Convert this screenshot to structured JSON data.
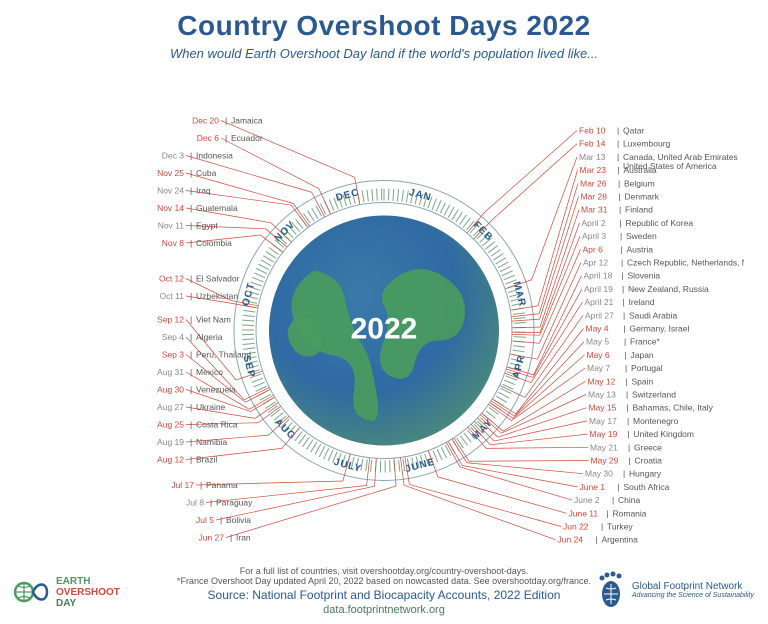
{
  "title": "Country Overshoot Days 2022",
  "subtitle": "When would Earth Overshoot Day land if the world's population lived like...",
  "year_label": "2022",
  "months": [
    "JAN",
    "FEB",
    "MAR",
    "APR",
    "MAY",
    "JUNE",
    "JULY",
    "AUG",
    "SEP",
    "OCT",
    "NOV",
    "DEC"
  ],
  "globe": {
    "ocean_colors": [
      "#2f6aa3",
      "#3a7aa8",
      "#4a8a7a"
    ],
    "land_color": "#4a9b5e",
    "radius": 115,
    "ring_outer": 150,
    "ring_inner": 128,
    "ring_stroke": "#8aa6b8",
    "tick_color": "#7aa68a",
    "month_label_radius": 140
  },
  "colors": {
    "title": "#2a5a8f",
    "date_highlight": "#d14a3b",
    "date_dim": "#888888",
    "leader": "#d14a3b",
    "country": "#555555"
  },
  "callouts_right": [
    {
      "date": "Feb 10",
      "country": "Qatar",
      "day": 41,
      "hl": true
    },
    {
      "date": "Feb 14",
      "country": "Luxembourg",
      "day": 45,
      "hl": true
    },
    {
      "date": "Mar 13",
      "country": "Canada, United Arab Emirates\nUnited States of America",
      "day": 72,
      "hl": false
    },
    {
      "date": "Mar 23",
      "country": "Australia",
      "day": 82,
      "hl": true
    },
    {
      "date": "Mar 26",
      "country": "Belgium",
      "day": 85,
      "hl": true
    },
    {
      "date": "Mar 28",
      "country": "Denmark",
      "day": 87,
      "hl": true
    },
    {
      "date": "Mar 31",
      "country": "Finland",
      "day": 90,
      "hl": true
    },
    {
      "date": "April 2",
      "country": "Republic of Korea",
      "day": 92,
      "hl": false
    },
    {
      "date": "April 3",
      "country": "Sweden",
      "day": 93,
      "hl": false
    },
    {
      "date": "Apr 6",
      "country": "Austria",
      "day": 96,
      "hl": true
    },
    {
      "date": "Apr 12",
      "country": "Czech Republic, Netherlands, Norway",
      "day": 102,
      "hl": false
    },
    {
      "date": "April 18",
      "country": "Slovenia",
      "day": 108,
      "hl": false
    },
    {
      "date": "April 19",
      "country": "New Zealand, Russia",
      "day": 109,
      "hl": false
    },
    {
      "date": "April 21",
      "country": "Ireland",
      "day": 111,
      "hl": false
    },
    {
      "date": "April 27",
      "country": "Saudi Arabia",
      "day": 117,
      "hl": false
    },
    {
      "date": "May 4",
      "country": "Germany, Israel",
      "day": 124,
      "hl": true
    },
    {
      "date": "May 5",
      "country": "France*",
      "day": 125,
      "hl": false
    },
    {
      "date": "May 6",
      "country": "Japan",
      "day": 126,
      "hl": true
    },
    {
      "date": "May 7",
      "country": "Portugal",
      "day": 127,
      "hl": false
    },
    {
      "date": "May 12",
      "country": "Spain",
      "day": 132,
      "hl": true
    },
    {
      "date": "May 13",
      "country": "Switzerland",
      "day": 133,
      "hl": false
    },
    {
      "date": "May 15",
      "country": "Bahamas, Chile, Italy",
      "day": 135,
      "hl": true
    },
    {
      "date": "May 17",
      "country": "Montenegro",
      "day": 137,
      "hl": false
    },
    {
      "date": "May 19",
      "country": "United Kingdom",
      "day": 139,
      "hl": true
    },
    {
      "date": "May 21",
      "country": "Greece",
      "day": 141,
      "hl": false
    },
    {
      "date": "May 29",
      "country": "Croatia",
      "day": 149,
      "hl": true
    },
    {
      "date": "May 30",
      "country": "Hungary",
      "day": 150,
      "hl": false
    },
    {
      "date": "June 1",
      "country": "South Africa",
      "day": 152,
      "hl": true
    },
    {
      "date": "June 2",
      "country": "China",
      "day": 153,
      "hl": false
    },
    {
      "date": "June 11",
      "country": "Romania",
      "day": 162,
      "hl": true
    },
    {
      "date": "Jun 22",
      "country": "Turkey",
      "day": 173,
      "hl": true
    },
    {
      "date": "Jun 24",
      "country": "Argentina",
      "day": 175,
      "hl": true
    }
  ],
  "callouts_left": [
    {
      "date": "Dec 20",
      "country": "Jamaica",
      "day": 354,
      "hl": true
    },
    {
      "date": "Dec 6",
      "country": "Ecuador",
      "day": 340,
      "hl": true
    },
    {
      "date": "Dec 3",
      "country": "Indonesia",
      "day": 337,
      "hl": false
    },
    {
      "date": "Nov 25",
      "country": "Cuba",
      "day": 329,
      "hl": true
    },
    {
      "date": "Nov 24",
      "country": "Iraq",
      "day": 328,
      "hl": false
    },
    {
      "date": "Nov 14",
      "country": "Guatemala",
      "day": 318,
      "hl": true
    },
    {
      "date": "Nov 11",
      "country": "Egypt",
      "day": 315,
      "hl": false
    },
    {
      "date": "Nov 8",
      "country": "Colombia",
      "day": 312,
      "hl": true
    },
    {
      "date": "Oct 12",
      "country": "El Salvador",
      "day": 285,
      "hl": true
    },
    {
      "date": "Oct 11",
      "country": "Uzbekistan",
      "day": 284,
      "hl": false
    },
    {
      "date": "Sep 12",
      "country": "Viet Nam",
      "day": 255,
      "hl": true
    },
    {
      "date": "Sep 4",
      "country": "Algeria",
      "day": 247,
      "hl": false
    },
    {
      "date": "Sep 3",
      "country": "Peru, Thailand",
      "day": 246,
      "hl": true
    },
    {
      "date": "Aug 31",
      "country": "Mexico",
      "day": 243,
      "hl": false
    },
    {
      "date": "Aug 30",
      "country": "Venezuela",
      "day": 242,
      "hl": true
    },
    {
      "date": "Aug 27",
      "country": "Ukraine",
      "day": 239,
      "hl": false
    },
    {
      "date": "Aug 25",
      "country": "Costa Rica",
      "day": 237,
      "hl": true
    },
    {
      "date": "Aug 19",
      "country": "Namibia",
      "day": 231,
      "hl": false
    },
    {
      "date": "Aug 12",
      "country": "Brazil",
      "day": 224,
      "hl": true
    },
    {
      "date": "Jul 17",
      "country": "Panama",
      "day": 198,
      "hl": true
    },
    {
      "date": "Jul 8",
      "country": "Paraguay",
      "day": 189,
      "hl": false
    },
    {
      "date": "Jul 5",
      "country": "Bolivia",
      "day": 186,
      "hl": true
    },
    {
      "date": "Jun 27",
      "country": "Iran",
      "day": 178,
      "hl": true
    }
  ],
  "footer": {
    "line1": "For a full list of countries, visit overshootday.org/country-overshoot-days.",
    "line2": "*France Overshoot Day updated April 20, 2022 based on nowcasted data. See overshootday.org/france.",
    "source": "Source: National Footprint and Biocapacity Accounts, 2022 Edition",
    "url": "data.footprintnetwork.org"
  },
  "logo_left": {
    "l1": "EARTH",
    "l2": "OVERSHOOT",
    "l3": "DAY"
  },
  "logo_right": {
    "name": "Global Footprint Network",
    "tag": "Advancing the Science of Sustainability"
  }
}
